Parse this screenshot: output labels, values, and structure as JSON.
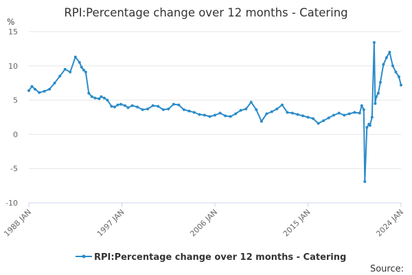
{
  "chart_data": {
    "type": "line",
    "title": "RPI:Percentage change over 12 months - Catering",
    "ylabel": "%",
    "xlabel": "",
    "ylim": [
      -10,
      15
    ],
    "yticks": [
      "15",
      "10",
      "5",
      "0",
      "-5",
      "-10"
    ],
    "xticks": [
      "1988 JAN",
      "1997 JAN",
      "2006 JAN",
      "2015 JAN",
      "2024 JAN"
    ],
    "grid": true,
    "legend_position": "bottom",
    "series_color": "#2a8bc9",
    "source_label": "Source:",
    "series": [
      {
        "name": "RPI:Percentage change over 12 months - Catering",
        "x": [
          1988.0,
          1988.3,
          1988.6,
          1989.0,
          1989.5,
          1990.0,
          1990.5,
          1991.0,
          1991.5,
          1992.0,
          1992.5,
          1992.9,
          1993.1,
          1993.3,
          1993.5,
          1993.8,
          1994.1,
          1994.4,
          1994.8,
          1995.0,
          1995.3,
          1995.6,
          1996.0,
          1996.3,
          1996.6,
          1996.9,
          1997.3,
          1997.6,
          1998.0,
          1998.5,
          1999.0,
          1999.5,
          2000.0,
          2000.5,
          2001.0,
          2001.5,
          2002.0,
          2002.5,
          2003.0,
          2003.5,
          2004.0,
          2004.5,
          2005.0,
          2005.5,
          2006.0,
          2006.5,
          2007.0,
          2007.5,
          2008.0,
          2008.5,
          2009.0,
          2009.5,
          2010.0,
          2010.5,
          2011.0,
          2011.5,
          2012.0,
          2012.5,
          2013.0,
          2013.5,
          2014.0,
          2014.5,
          2015.0,
          2015.5,
          2016.0,
          2016.5,
          2017.0,
          2017.5,
          2018.0,
          2018.5,
          2019.0,
          2019.5,
          2020.0,
          2020.2,
          2020.4,
          2020.5,
          2020.7,
          2020.9,
          2021.0,
          2021.2,
          2021.4,
          2021.5,
          2021.6,
          2021.8,
          2022.0,
          2022.3,
          2022.6,
          2022.9,
          2023.2,
          2023.5,
          2023.8,
          2024.0
        ],
        "values": [
          6.4,
          7.0,
          6.6,
          6.1,
          6.3,
          6.6,
          7.5,
          8.5,
          9.5,
          9.1,
          11.3,
          10.5,
          9.8,
          9.4,
          9.1,
          6.0,
          5.5,
          5.3,
          5.2,
          5.5,
          5.3,
          5.0,
          4.1,
          4.0,
          4.3,
          4.4,
          4.2,
          3.9,
          4.2,
          4.0,
          3.6,
          3.7,
          4.2,
          4.1,
          3.6,
          3.7,
          4.4,
          4.3,
          3.6,
          3.4,
          3.2,
          2.9,
          2.8,
          2.6,
          2.8,
          3.1,
          2.7,
          2.6,
          3.0,
          3.5,
          3.7,
          4.7,
          3.6,
          1.9,
          3.0,
          3.3,
          3.7,
          4.3,
          3.2,
          3.1,
          2.9,
          2.7,
          2.5,
          2.3,
          1.6,
          2.0,
          2.4,
          2.8,
          3.1,
          2.8,
          3.0,
          3.2,
          3.1,
          4.2,
          3.6,
          -6.9,
          1.0,
          1.5,
          1.3,
          2.5,
          13.4,
          4.5,
          5.5,
          6.0,
          7.6,
          10.2,
          11.2,
          12.0,
          10.0,
          9.1,
          8.4,
          7.2
        ]
      }
    ]
  }
}
